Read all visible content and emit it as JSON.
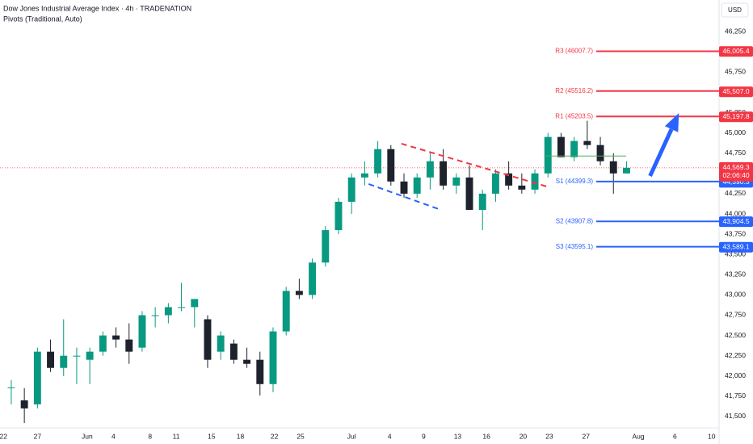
{
  "chart_data": {
    "type": "candlestick",
    "title": "Dow Jones Industrial Average Index · 4h · TRADENATION",
    "subtitle": "Pivots (Traditional, Auto)",
    "currency": "USD",
    "up_color": "#089981",
    "down_color": "#1e222d",
    "open": [
      41850,
      41700,
      41650,
      42300,
      42100,
      42250,
      42200,
      42300,
      42500,
      42450,
      42350,
      42750,
      42750,
      42850,
      42850,
      42700,
      42300,
      42400,
      42200,
      42200,
      41900,
      42550,
      43050,
      43000,
      43400,
      43800,
      44150,
      44450,
      44500,
      44800,
      44400,
      44250,
      44450,
      44650,
      44350,
      44450,
      44050,
      44250,
      44500,
      44350,
      44300,
      44500,
      44950,
      44700,
      44900,
      44850,
      44650,
      44500
    ],
    "high": [
      41950,
      41850,
      42350,
      42450,
      42700,
      42350,
      42350,
      42550,
      42600,
      42650,
      42800,
      42850,
      42900,
      43150,
      42950,
      42750,
      42550,
      42450,
      42350,
      42300,
      42600,
      43100,
      43200,
      43450,
      43850,
      44200,
      44500,
      44650,
      44900,
      44850,
      44500,
      44500,
      44750,
      44800,
      44500,
      44600,
      44300,
      44550,
      44650,
      44500,
      44550,
      45000,
      45000,
      44950,
      45150,
      44950,
      44750,
      44650
    ],
    "low": [
      41650,
      41420,
      41600,
      42050,
      42000,
      41900,
      41900,
      42250,
      42350,
      42150,
      42300,
      42600,
      42650,
      42800,
      42600,
      42100,
      42200,
      42150,
      42100,
      41760,
      41800,
      42500,
      42950,
      42950,
      43350,
      43750,
      44000,
      44350,
      44450,
      44350,
      44200,
      44200,
      44300,
      44300,
      44250,
      44050,
      43800,
      44150,
      44300,
      44250,
      44250,
      44450,
      44700,
      44650,
      44800,
      44600,
      44250,
      44500
    ],
    "close": [
      41860,
      41600,
      42300,
      42100,
      42250,
      42250,
      42300,
      42500,
      42450,
      42300,
      42750,
      42750,
      42850,
      42850,
      42950,
      42200,
      42500,
      42200,
      42150,
      41900,
      42550,
      43050,
      43000,
      43400,
      43800,
      44150,
      44450,
      44500,
      44800,
      44400,
      44250,
      44450,
      44650,
      44350,
      44450,
      44050,
      44250,
      44500,
      44350,
      44300,
      44500,
      44950,
      44700,
      44900,
      44850,
      44650,
      44500,
      44569.3
    ],
    "xlim": [
      -0.86,
      54.07
    ],
    "xticks": [
      {
        "value": -0.6,
        "label": "22"
      },
      {
        "value": 2,
        "label": "27"
      },
      {
        "value": 5.8,
        "label": "Jun"
      },
      {
        "value": 7.8,
        "label": "4"
      },
      {
        "value": 10.6,
        "label": "8"
      },
      {
        "value": 12.6,
        "label": "11"
      },
      {
        "value": 15.3,
        "label": "15"
      },
      {
        "value": 17.5,
        "label": "18"
      },
      {
        "value": 20.1,
        "label": "22"
      },
      {
        "value": 22.1,
        "label": "25"
      },
      {
        "value": 26,
        "label": "Jul"
      },
      {
        "value": 28.9,
        "label": "4"
      },
      {
        "value": 31.5,
        "label": "9"
      },
      {
        "value": 34.1,
        "label": "13"
      },
      {
        "value": 36.3,
        "label": "16"
      },
      {
        "value": 39.1,
        "label": "20"
      },
      {
        "value": 41.1,
        "label": "23"
      },
      {
        "value": 43.9,
        "label": "27"
      },
      {
        "value": 47.9,
        "label": "Aug"
      },
      {
        "value": 50.7,
        "label": "6"
      },
      {
        "value": 53.5,
        "label": "10"
      }
    ],
    "ylim": [
      41360,
      46640
    ],
    "yticks": [
      {
        "value": 41500,
        "label": "41,500"
      },
      {
        "value": 41750,
        "label": "41,750"
      },
      {
        "value": 42000,
        "label": "42,000"
      },
      {
        "value": 42250,
        "label": "42,250"
      },
      {
        "value": 42500,
        "label": "42,500"
      },
      {
        "value": 42750,
        "label": "42,750"
      },
      {
        "value": 43000,
        "label": "43,000"
      },
      {
        "value": 43250,
        "label": "43,250"
      },
      {
        "value": 43500,
        "label": "43,500"
      },
      {
        "value": 43750,
        "label": "43,750"
      },
      {
        "value": 44000,
        "label": "44,000"
      },
      {
        "value": 44250,
        "label": "44,250"
      },
      {
        "value": 44500,
        "label": "44,500"
      },
      {
        "value": 44750,
        "label": "44,750"
      },
      {
        "value": 45000,
        "label": "45,000"
      },
      {
        "value": 45250,
        "label": "45,250"
      },
      {
        "value": 45500,
        "label": "45,500"
      },
      {
        "value": 45750,
        "label": "45,750"
      },
      {
        "value": 46000,
        "label": "46,000"
      },
      {
        "value": 46250,
        "label": "46,250"
      }
    ],
    "pivots": {
      "names": [
        "R3",
        "R2",
        "R1",
        "P",
        "S1",
        "S2",
        "S3"
      ],
      "values": [
        46007.7,
        45516.2,
        45203.5,
        44715,
        44399.3,
        43907.8,
        43595.1
      ],
      "value_labels": [
        "R3 (46007.7)",
        "R2 (45516.2)",
        "R1 (45203.5)",
        null,
        "S1 (44399.3)",
        "S2 (43907.8)",
        "S3 (43595.1)"
      ],
      "colors": [
        "#f23645",
        "#f23645",
        "#f23645",
        "#4caf50",
        "#2962ff",
        "#2962ff",
        "#2962ff"
      ]
    },
    "price_labels": [
      {
        "value": 46005.4,
        "label": "46,005.4",
        "color": "#f23645"
      },
      {
        "value": 45507.0,
        "label": "45,507.0",
        "color": "#f23645"
      },
      {
        "value": 45197.8,
        "label": "45,197.8",
        "color": "#f23645"
      },
      {
        "value": 44390.3,
        "label": "44,390.3",
        "color": "#2962ff"
      },
      {
        "value": 43904.5,
        "label": "43,904.5",
        "color": "#2962ff"
      },
      {
        "value": 43589.1,
        "label": "43,589.1",
        "color": "#2962ff"
      }
    ],
    "last_price": {
      "value": 44569.3,
      "label": "44,569.3",
      "countdown": "02:06:40",
      "color": "#f23645"
    },
    "trendlines": [
      {
        "color": "#f23645",
        "x": [
          29.8,
          41.1
        ],
        "y": [
          44867,
          44329
        ]
      },
      {
        "color": "#2962ff",
        "x": [
          27.3,
          32.65
        ],
        "y": [
          44369,
          44060
        ]
      }
    ],
    "arrow": {
      "color": "#2962ff",
      "x": [
        48.8,
        51
      ],
      "y": [
        44468,
        45245
      ]
    }
  }
}
